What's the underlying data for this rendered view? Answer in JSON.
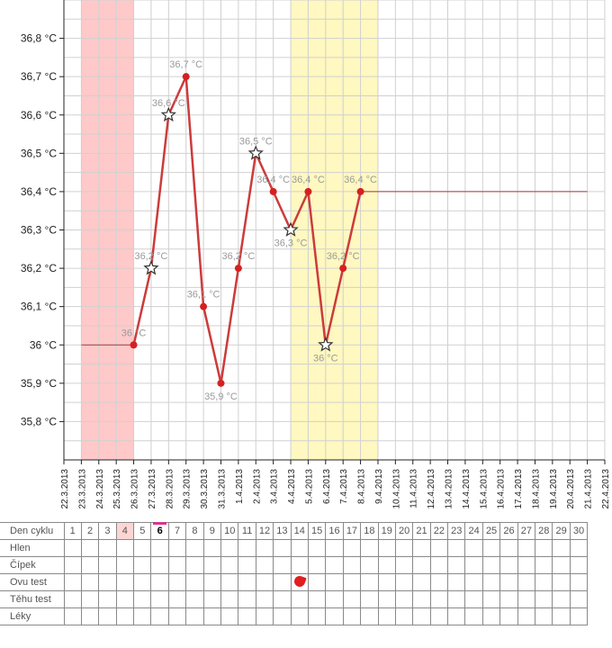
{
  "chart_data": {
    "type": "line",
    "title": "",
    "xlabel": "",
    "ylabel": "",
    "ylim": [
      35.7,
      36.9
    ],
    "y_ticks": [
      {
        "value": 35.8,
        "label": "35,8 °C"
      },
      {
        "value": 35.9,
        "label": "35,9 °C"
      },
      {
        "value": 36.0,
        "label": "36 °C"
      },
      {
        "value": 36.1,
        "label": "36,1 °C"
      },
      {
        "value": 36.2,
        "label": "36,2 °C"
      },
      {
        "value": 36.3,
        "label": "36,3 °C"
      },
      {
        "value": 36.4,
        "label": "36,4 °C"
      },
      {
        "value": 36.5,
        "label": "36,5 °C"
      },
      {
        "value": 36.6,
        "label": "36,6 °C"
      },
      {
        "value": 36.7,
        "label": "36,7 °C"
      },
      {
        "value": 36.8,
        "label": "36,8 °C"
      }
    ],
    "x_ticks": [
      "22.3.2013",
      "23.3.2013",
      "24.3.2013",
      "25.3.2013",
      "26.3.2013",
      "27.3.2013",
      "28.3.2013",
      "29.3.2013",
      "30.3.2013",
      "31.3.2013",
      "1.4.2013",
      "2.4.2013",
      "3.4.2013",
      "4.4.2013",
      "5.4.2013",
      "6.4.2013",
      "7.4.2013",
      "8.4.2013",
      "9.4.2013",
      "10.4.2013",
      "11.4.2013",
      "12.4.2013",
      "13.4.2013",
      "14.4.2013",
      "15.4.2013",
      "16.4.2013",
      "17.4.2013",
      "18.4.2013",
      "19.4.2013",
      "20.4.2013",
      "21.4.2013",
      "22.4.2013"
    ],
    "grid": true,
    "menstruation_band": {
      "from": "23.3.2013",
      "to": "26.3.2013",
      "color": "#ffc9c9"
    },
    "fertile_band": {
      "from": "4.4.2013",
      "to": "9.4.2013",
      "color": "#fff8c0"
    },
    "series": [
      {
        "color": "#cc3b3b",
        "points": [
          {
            "x": "26.3.2013",
            "y": 36.0,
            "label": "36 °C",
            "marker": "dot"
          },
          {
            "x": "27.3.2013",
            "y": 36.2,
            "label": "36,2 °C",
            "marker": "star"
          },
          {
            "x": "28.3.2013",
            "y": 36.6,
            "label": "36,6 °C",
            "marker": "star"
          },
          {
            "x": "29.3.2013",
            "y": 36.7,
            "label": "36,7 °C",
            "marker": "dot"
          },
          {
            "x": "30.3.2013",
            "y": 36.1,
            "label": "36,1 °C",
            "marker": "dot"
          },
          {
            "x": "31.3.2013",
            "y": 35.9,
            "label": "35,9 °C",
            "marker": "dot"
          },
          {
            "x": "1.4.2013",
            "y": 36.2,
            "label": "36,2 °C",
            "marker": "dot"
          },
          {
            "x": "2.4.2013",
            "y": 36.5,
            "label": "36,5 °C",
            "marker": "star"
          },
          {
            "x": "3.4.2013",
            "y": 36.4,
            "label": "36,4 °C",
            "marker": "dot"
          },
          {
            "x": "4.4.2013",
            "y": 36.3,
            "label": "36,3 °C",
            "marker": "star"
          },
          {
            "x": "5.4.2013",
            "y": 36.4,
            "label": "36,4 °C",
            "marker": "dot"
          },
          {
            "x": "6.4.2013",
            "y": 36.0,
            "label": "36 °C",
            "marker": "star"
          },
          {
            "x": "7.4.2013",
            "y": 36.2,
            "label": "36,2 °C",
            "marker": "dot"
          },
          {
            "x": "8.4.2013",
            "y": 36.4,
            "label": "36,4 °C",
            "marker": "dot"
          }
        ]
      }
    ],
    "reference_lines": [
      {
        "from": "23.3.2013",
        "to": "26.3.2013",
        "y": 36.0,
        "color": "#a83838"
      },
      {
        "from": "8.4.2013",
        "to": "21.4.2013",
        "y": 36.4,
        "color": "#a83838"
      }
    ]
  },
  "cycle_table": {
    "header_label": "Den cyklu",
    "days": [
      "1",
      "2",
      "3",
      "4",
      "5",
      "6",
      "7",
      "8",
      "9",
      "10",
      "11",
      "12",
      "13",
      "14",
      "15",
      "16",
      "17",
      "18",
      "19",
      "20",
      "21",
      "22",
      "23",
      "24",
      "25",
      "26",
      "27",
      "28",
      "29",
      "30"
    ],
    "menstruation_day": "4",
    "current_day": "6",
    "rows": [
      {
        "label": "Hlen",
        "marks": {}
      },
      {
        "label": "Čípek",
        "marks": {}
      },
      {
        "label": "Ovu test",
        "marks": {
          "14": "red-drop-icon"
        }
      },
      {
        "label": "Těhu test",
        "marks": {}
      },
      {
        "label": "Léky",
        "marks": {}
      }
    ]
  }
}
